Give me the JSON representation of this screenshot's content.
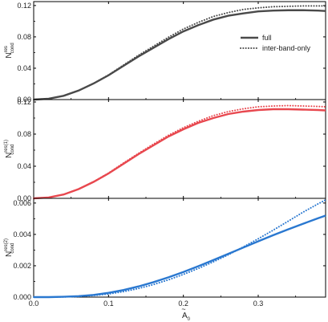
{
  "colors": {
    "full_panel1": "#4a4a4a",
    "full_panel2": "#e8484f",
    "full_panel3": "#2a78d0",
    "axis": "#000000"
  },
  "legend": {
    "placement": "top-right",
    "full_label": "full",
    "inter_label": "inter-band-only"
  },
  "xlabel": {
    "main": "A",
    "sub": "0",
    "accent": "~"
  },
  "chart_data": [
    {
      "type": "line",
      "panel": "top",
      "ylabel": {
        "main": "N",
        "sup": "res",
        "sub": "cond"
      },
      "xlim": [
        0,
        0.39
      ],
      "ylim": [
        0,
        0.125
      ],
      "yticks": [
        0.0,
        0.04,
        0.08,
        0.12
      ],
      "ytick_labels": [
        "0.00",
        "0.04",
        "0.08",
        "0.12"
      ],
      "series": [
        {
          "name": "full",
          "style": "solid",
          "x": [
            0,
            0.02,
            0.04,
            0.06,
            0.08,
            0.1,
            0.12,
            0.14,
            0.16,
            0.18,
            0.2,
            0.22,
            0.24,
            0.26,
            0.28,
            0.3,
            0.32,
            0.34,
            0.36,
            0.38,
            0.39
          ],
          "y": [
            0,
            0.0011,
            0.0048,
            0.0115,
            0.0205,
            0.031,
            0.043,
            0.055,
            0.066,
            0.077,
            0.087,
            0.095,
            0.102,
            0.107,
            0.11,
            0.1125,
            0.1135,
            0.114,
            0.114,
            0.1135,
            0.113
          ]
        },
        {
          "name": "inter-band-only",
          "style": "dotted",
          "x": [
            0,
            0.02,
            0.04,
            0.06,
            0.08,
            0.1,
            0.12,
            0.14,
            0.16,
            0.18,
            0.2,
            0.22,
            0.24,
            0.26,
            0.28,
            0.3,
            0.32,
            0.34,
            0.36,
            0.38,
            0.39
          ],
          "y": [
            0,
            0.0011,
            0.0048,
            0.0116,
            0.0207,
            0.0315,
            0.044,
            0.0565,
            0.068,
            0.0795,
            0.09,
            0.0985,
            0.106,
            0.111,
            0.115,
            0.117,
            0.1185,
            0.119,
            0.1195,
            0.1195,
            0.1195
          ]
        }
      ]
    },
    {
      "type": "line",
      "panel": "middle",
      "ylabel": {
        "main": "N",
        "sup": "res(1)",
        "sub": "cond"
      },
      "xlim": [
        0,
        0.39
      ],
      "ylim": [
        0,
        0.123
      ],
      "yticks": [
        0.0,
        0.04,
        0.08,
        0.12
      ],
      "ytick_labels": [
        "0.00",
        "0.04",
        "0.08",
        "0.12"
      ],
      "series": [
        {
          "name": "full",
          "style": "solid",
          "x": [
            0,
            0.02,
            0.04,
            0.06,
            0.08,
            0.1,
            0.12,
            0.14,
            0.16,
            0.18,
            0.2,
            0.22,
            0.24,
            0.26,
            0.28,
            0.3,
            0.32,
            0.34,
            0.36,
            0.38,
            0.39
          ],
          "y": [
            0,
            0.0011,
            0.0048,
            0.0115,
            0.0205,
            0.031,
            0.043,
            0.055,
            0.066,
            0.077,
            0.086,
            0.094,
            0.1,
            0.105,
            0.108,
            0.11,
            0.111,
            0.111,
            0.1105,
            0.11,
            0.1095
          ]
        },
        {
          "name": "inter-band-only",
          "style": "dotted",
          "x": [
            0,
            0.02,
            0.04,
            0.06,
            0.08,
            0.1,
            0.12,
            0.14,
            0.16,
            0.18,
            0.2,
            0.22,
            0.24,
            0.26,
            0.28,
            0.3,
            0.32,
            0.34,
            0.36,
            0.38,
            0.39
          ],
          "y": [
            0,
            0.0011,
            0.0048,
            0.0116,
            0.0207,
            0.0315,
            0.044,
            0.056,
            0.0675,
            0.0785,
            0.088,
            0.096,
            0.103,
            0.108,
            0.1115,
            0.114,
            0.115,
            0.1155,
            0.115,
            0.1145,
            0.114
          ]
        }
      ]
    },
    {
      "type": "line",
      "panel": "bottom",
      "ylabel": {
        "main": "N",
        "sup": "res(2)",
        "sub": "cond"
      },
      "xlim": [
        0,
        0.39
      ],
      "ylim": [
        0,
        0.0063
      ],
      "yticks": [
        0.0,
        0.002,
        0.004,
        0.006
      ],
      "ytick_labels": [
        "0.000",
        "0.002",
        "0.004",
        "0.006"
      ],
      "series": [
        {
          "name": "full",
          "style": "solid",
          "x": [
            0,
            0.02,
            0.04,
            0.06,
            0.08,
            0.1,
            0.12,
            0.14,
            0.16,
            0.18,
            0.2,
            0.22,
            0.24,
            0.26,
            0.28,
            0.3,
            0.32,
            0.34,
            0.36,
            0.38,
            0.39
          ],
          "y": [
            0,
            0.0,
            2e-05,
            6e-05,
            0.00014,
            0.00027,
            0.00045,
            0.00068,
            0.00095,
            0.00126,
            0.0016,
            0.00197,
            0.00236,
            0.00276,
            0.00316,
            0.00356,
            0.00395,
            0.00432,
            0.00468,
            0.00503,
            0.0052
          ]
        },
        {
          "name": "inter-band-only",
          "style": "dotted",
          "x": [
            0,
            0.02,
            0.04,
            0.06,
            0.08,
            0.1,
            0.12,
            0.14,
            0.16,
            0.18,
            0.2,
            0.22,
            0.24,
            0.26,
            0.28,
            0.3,
            0.32,
            0.34,
            0.36,
            0.38,
            0.39
          ],
          "y": [
            0,
            0.0,
            1e-05,
            4e-05,
            0.0001,
            0.0002,
            0.00035,
            0.00055,
            0.0008,
            0.0011,
            0.00145,
            0.00183,
            0.00225,
            0.0027,
            0.0032,
            0.00372,
            0.00427,
            0.00484,
            0.00542,
            0.00595,
            0.0062
          ]
        }
      ]
    }
  ],
  "xticks": [
    0.0,
    0.1,
    0.2,
    0.3
  ],
  "xtick_labels": [
    "0.0",
    "0.1",
    "0.2",
    "0.3"
  ]
}
